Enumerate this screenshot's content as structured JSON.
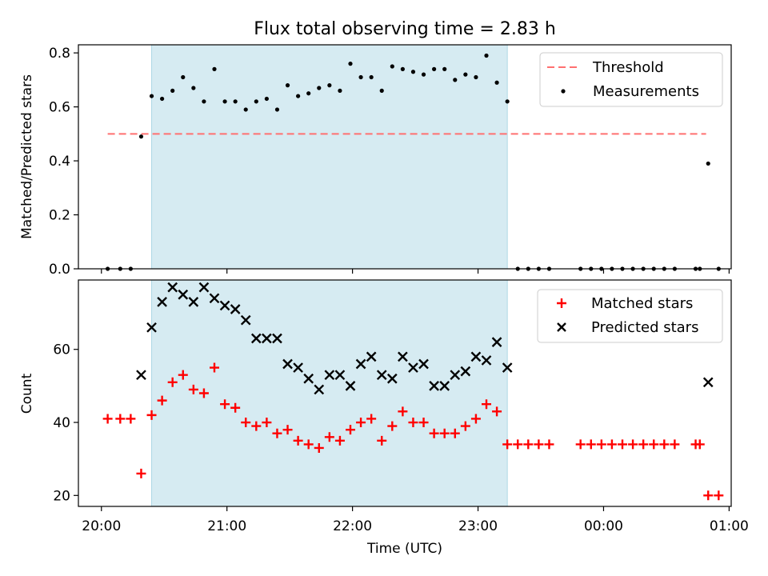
{
  "chart_data": {
    "type": "scatter",
    "title": "Flux total observing time = 2.83 h",
    "xlabel": "Time (UTC)",
    "x_ticks": [
      "20:00",
      "21:00",
      "22:00",
      "23:00",
      "00:00",
      "01:00"
    ],
    "x_ticks_min": [
      0,
      60,
      120,
      180,
      240,
      300
    ],
    "xlim_min": [
      -11,
      301
    ],
    "observing_window_min": [
      24,
      194
    ],
    "panels": [
      {
        "id": "ratio",
        "ylabel": "Matched/Predicted stars",
        "ylim": [
          0,
          0.83
        ],
        "y_ticks": [
          0.0,
          0.2,
          0.4,
          0.6,
          0.8
        ],
        "y_tick_labels": [
          "0.0",
          "0.2",
          "0.4",
          "0.6",
          "0.8"
        ],
        "legend": "top-right",
        "threshold": {
          "name": "Threshold",
          "value": 0.5,
          "x_range_min": [
            3,
            289
          ],
          "color": "#ff7070"
        },
        "measurements": {
          "name": "Measurements",
          "color": "#000000",
          "points": [
            [
              3,
              0.0
            ],
            [
              9,
              0.0
            ],
            [
              14,
              0.0
            ],
            [
              19,
              0.49
            ],
            [
              24,
              0.64
            ],
            [
              29,
              0.63
            ],
            [
              34,
              0.66
            ],
            [
              39,
              0.71
            ],
            [
              44,
              0.67
            ],
            [
              49,
              0.62
            ],
            [
              54,
              0.74
            ],
            [
              59,
              0.62
            ],
            [
              64,
              0.62
            ],
            [
              69,
              0.59
            ],
            [
              74,
              0.62
            ],
            [
              79,
              0.63
            ],
            [
              84,
              0.59
            ],
            [
              89,
              0.68
            ],
            [
              94,
              0.64
            ],
            [
              99,
              0.65
            ],
            [
              104,
              0.67
            ],
            [
              109,
              0.68
            ],
            [
              114,
              0.66
            ],
            [
              119,
              0.76
            ],
            [
              124,
              0.71
            ],
            [
              129,
              0.71
            ],
            [
              134,
              0.66
            ],
            [
              139,
              0.75
            ],
            [
              144,
              0.74
            ],
            [
              149,
              0.73
            ],
            [
              154,
              0.72
            ],
            [
              159,
              0.74
            ],
            [
              164,
              0.74
            ],
            [
              169,
              0.7
            ],
            [
              174,
              0.72
            ],
            [
              179,
              0.71
            ],
            [
              184,
              0.79
            ],
            [
              189,
              0.69
            ],
            [
              194,
              0.62
            ],
            [
              199,
              0.0
            ],
            [
              204,
              0.0
            ],
            [
              209,
              0.0
            ],
            [
              214,
              0.0
            ],
            [
              229,
              0.0
            ],
            [
              234,
              0.0
            ],
            [
              239,
              0.0
            ],
            [
              244,
              0.0
            ],
            [
              249,
              0.0
            ],
            [
              254,
              0.0
            ],
            [
              259,
              0.0
            ],
            [
              264,
              0.0
            ],
            [
              269,
              0.0
            ],
            [
              274,
              0.0
            ],
            [
              284,
              0.0
            ],
            [
              286,
              0.0
            ],
            [
              290,
              0.39
            ],
            [
              295,
              0.0
            ]
          ]
        }
      },
      {
        "id": "count",
        "ylabel": "Count",
        "ylim": [
          17,
          79
        ],
        "y_ticks": [
          20,
          40,
          60
        ],
        "y_tick_labels": [
          "20",
          "40",
          "60"
        ],
        "legend": "top-right",
        "matched": {
          "name": "Matched stars",
          "color": "#ff0000",
          "points": [
            [
              3,
              41
            ],
            [
              9,
              41
            ],
            [
              14,
              41
            ],
            [
              19,
              26
            ],
            [
              24,
              42
            ],
            [
              29,
              46
            ],
            [
              34,
              51
            ],
            [
              39,
              53
            ],
            [
              44,
              49
            ],
            [
              49,
              48
            ],
            [
              54,
              55
            ],
            [
              59,
              45
            ],
            [
              64,
              44
            ],
            [
              69,
              40
            ],
            [
              74,
              39
            ],
            [
              79,
              40
            ],
            [
              84,
              37
            ],
            [
              89,
              38
            ],
            [
              94,
              35
            ],
            [
              99,
              34
            ],
            [
              104,
              33
            ],
            [
              109,
              36
            ],
            [
              114,
              35
            ],
            [
              119,
              38
            ],
            [
              124,
              40
            ],
            [
              129,
              41
            ],
            [
              134,
              35
            ],
            [
              139,
              39
            ],
            [
              144,
              43
            ],
            [
              149,
              40
            ],
            [
              154,
              40
            ],
            [
              159,
              37
            ],
            [
              164,
              37
            ],
            [
              169,
              37
            ],
            [
              174,
              39
            ],
            [
              179,
              41
            ],
            [
              184,
              45
            ],
            [
              189,
              43
            ],
            [
              194,
              34
            ],
            [
              199,
              34
            ],
            [
              204,
              34
            ],
            [
              209,
              34
            ],
            [
              214,
              34
            ],
            [
              229,
              34
            ],
            [
              234,
              34
            ],
            [
              239,
              34
            ],
            [
              244,
              34
            ],
            [
              249,
              34
            ],
            [
              254,
              34
            ],
            [
              259,
              34
            ],
            [
              264,
              34
            ],
            [
              269,
              34
            ],
            [
              274,
              34
            ],
            [
              284,
              34
            ],
            [
              286,
              34
            ],
            [
              290,
              20
            ],
            [
              295,
              20
            ]
          ]
        },
        "predicted": {
          "name": "Predicted stars",
          "color": "#000000",
          "points": [
            [
              19,
              53
            ],
            [
              24,
              66
            ],
            [
              29,
              73
            ],
            [
              34,
              77
            ],
            [
              39,
              75
            ],
            [
              44,
              73
            ],
            [
              49,
              77
            ],
            [
              54,
              74
            ],
            [
              59,
              72
            ],
            [
              64,
              71
            ],
            [
              69,
              68
            ],
            [
              74,
              63
            ],
            [
              79,
              63
            ],
            [
              84,
              63
            ],
            [
              89,
              56
            ],
            [
              94,
              55
            ],
            [
              99,
              52
            ],
            [
              104,
              49
            ],
            [
              109,
              53
            ],
            [
              114,
              53
            ],
            [
              119,
              50
            ],
            [
              124,
              56
            ],
            [
              129,
              58
            ],
            [
              134,
              53
            ],
            [
              139,
              52
            ],
            [
              144,
              58
            ],
            [
              149,
              55
            ],
            [
              154,
              56
            ],
            [
              159,
              50
            ],
            [
              164,
              50
            ],
            [
              169,
              53
            ],
            [
              174,
              54
            ],
            [
              179,
              58
            ],
            [
              184,
              57
            ],
            [
              189,
              62
            ],
            [
              194,
              55
            ],
            [
              290,
              51
            ]
          ]
        }
      }
    ]
  }
}
